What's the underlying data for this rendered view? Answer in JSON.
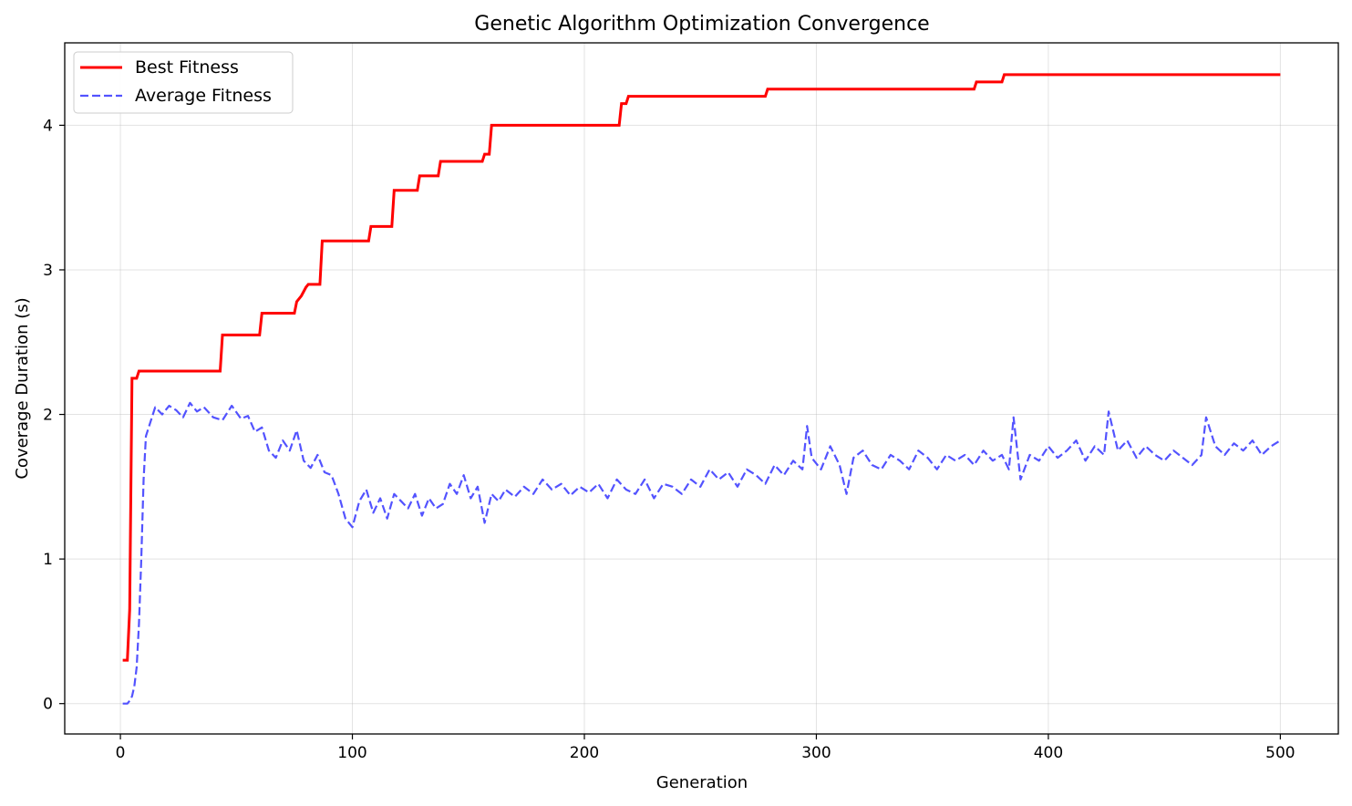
{
  "chart_data": {
    "type": "line",
    "title": "Genetic Algorithm Optimization Convergence",
    "xlabel": "Generation",
    "ylabel": "Coverage Duration (s)",
    "xlim": [
      -24,
      525
    ],
    "ylim": [
      -0.21,
      4.57
    ],
    "xticks": [
      0,
      100,
      200,
      300,
      400,
      500
    ],
    "yticks": [
      0,
      1,
      2,
      3,
      4
    ],
    "grid": true,
    "legend_position": "upper left",
    "series": [
      {
        "name": "Best Fitness",
        "style": "solid",
        "color": "#ff0000",
        "points": [
          [
            1,
            0.3
          ],
          [
            3,
            0.3
          ],
          [
            4,
            0.65
          ],
          [
            5,
            2.25
          ],
          [
            7,
            2.25
          ],
          [
            8,
            2.3
          ],
          [
            43,
            2.3
          ],
          [
            44,
            2.55
          ],
          [
            60,
            2.55
          ],
          [
            61,
            2.7
          ],
          [
            75,
            2.7
          ],
          [
            76,
            2.78
          ],
          [
            77,
            2.8
          ],
          [
            78,
            2.82
          ],
          [
            79,
            2.85
          ],
          [
            80,
            2.88
          ],
          [
            81,
            2.9
          ],
          [
            86,
            2.9
          ],
          [
            87,
            3.2
          ],
          [
            107,
            3.2
          ],
          [
            108,
            3.3
          ],
          [
            117,
            3.3
          ],
          [
            118,
            3.55
          ],
          [
            128,
            3.55
          ],
          [
            129,
            3.65
          ],
          [
            137,
            3.65
          ],
          [
            138,
            3.75
          ],
          [
            156,
            3.75
          ],
          [
            157,
            3.8
          ],
          [
            159,
            3.8
          ],
          [
            160,
            4.0
          ],
          [
            215,
            4.0
          ],
          [
            216,
            4.15
          ],
          [
            218,
            4.15
          ],
          [
            219,
            4.2
          ],
          [
            278,
            4.2
          ],
          [
            279,
            4.25
          ],
          [
            368,
            4.25
          ],
          [
            369,
            4.3
          ],
          [
            380,
            4.3
          ],
          [
            381,
            4.35
          ],
          [
            500,
            4.35
          ]
        ]
      },
      {
        "name": "Average Fitness",
        "style": "dashed",
        "color": "#4040ff",
        "points": [
          [
            1,
            0.0
          ],
          [
            3,
            0.0
          ],
          [
            4,
            0.02
          ],
          [
            5,
            0.05
          ],
          [
            6,
            0.12
          ],
          [
            7,
            0.25
          ],
          [
            8,
            0.55
          ],
          [
            9,
            1.0
          ],
          [
            10,
            1.55
          ],
          [
            11,
            1.85
          ],
          [
            13,
            1.95
          ],
          [
            15,
            2.05
          ],
          [
            18,
            2.0
          ],
          [
            21,
            2.06
          ],
          [
            24,
            2.03
          ],
          [
            27,
            1.98
          ],
          [
            30,
            2.08
          ],
          [
            33,
            2.02
          ],
          [
            36,
            2.05
          ],
          [
            40,
            1.98
          ],
          [
            44,
            1.96
          ],
          [
            48,
            2.06
          ],
          [
            52,
            1.97
          ],
          [
            55,
            1.99
          ],
          [
            58,
            1.88
          ],
          [
            61,
            1.91
          ],
          [
            64,
            1.75
          ],
          [
            67,
            1.7
          ],
          [
            70,
            1.82
          ],
          [
            73,
            1.75
          ],
          [
            76,
            1.89
          ],
          [
            79,
            1.68
          ],
          [
            82,
            1.63
          ],
          [
            85,
            1.72
          ],
          [
            88,
            1.6
          ],
          [
            91,
            1.58
          ],
          [
            94,
            1.45
          ],
          [
            97,
            1.28
          ],
          [
            100,
            1.22
          ],
          [
            103,
            1.4
          ],
          [
            106,
            1.48
          ],
          [
            109,
            1.32
          ],
          [
            112,
            1.42
          ],
          [
            115,
            1.28
          ],
          [
            118,
            1.45
          ],
          [
            121,
            1.4
          ],
          [
            124,
            1.35
          ],
          [
            127,
            1.45
          ],
          [
            130,
            1.3
          ],
          [
            133,
            1.42
          ],
          [
            136,
            1.35
          ],
          [
            139,
            1.38
          ],
          [
            142,
            1.52
          ],
          [
            145,
            1.45
          ],
          [
            148,
            1.58
          ],
          [
            151,
            1.42
          ],
          [
            154,
            1.5
          ],
          [
            157,
            1.25
          ],
          [
            160,
            1.45
          ],
          [
            163,
            1.4
          ],
          [
            166,
            1.48
          ],
          [
            170,
            1.43
          ],
          [
            174,
            1.5
          ],
          [
            178,
            1.45
          ],
          [
            182,
            1.55
          ],
          [
            186,
            1.48
          ],
          [
            190,
            1.52
          ],
          [
            194,
            1.44
          ],
          [
            198,
            1.5
          ],
          [
            202,
            1.46
          ],
          [
            206,
            1.52
          ],
          [
            210,
            1.42
          ],
          [
            214,
            1.55
          ],
          [
            218,
            1.48
          ],
          [
            222,
            1.45
          ],
          [
            226,
            1.55
          ],
          [
            230,
            1.42
          ],
          [
            234,
            1.52
          ],
          [
            238,
            1.5
          ],
          [
            242,
            1.45
          ],
          [
            246,
            1.55
          ],
          [
            250,
            1.5
          ],
          [
            254,
            1.62
          ],
          [
            258,
            1.55
          ],
          [
            262,
            1.6
          ],
          [
            266,
            1.5
          ],
          [
            270,
            1.62
          ],
          [
            274,
            1.58
          ],
          [
            278,
            1.52
          ],
          [
            282,
            1.65
          ],
          [
            286,
            1.58
          ],
          [
            290,
            1.68
          ],
          [
            294,
            1.62
          ],
          [
            296,
            1.92
          ],
          [
            298,
            1.7
          ],
          [
            302,
            1.62
          ],
          [
            306,
            1.78
          ],
          [
            310,
            1.65
          ],
          [
            313,
            1.45
          ],
          [
            316,
            1.7
          ],
          [
            320,
            1.75
          ],
          [
            324,
            1.65
          ],
          [
            328,
            1.62
          ],
          [
            332,
            1.72
          ],
          [
            336,
            1.68
          ],
          [
            340,
            1.62
          ],
          [
            344,
            1.75
          ],
          [
            348,
            1.7
          ],
          [
            352,
            1.62
          ],
          [
            356,
            1.72
          ],
          [
            360,
            1.68
          ],
          [
            364,
            1.72
          ],
          [
            368,
            1.65
          ],
          [
            372,
            1.75
          ],
          [
            376,
            1.68
          ],
          [
            380,
            1.72
          ],
          [
            383,
            1.62
          ],
          [
            385,
            1.98
          ],
          [
            388,
            1.55
          ],
          [
            392,
            1.72
          ],
          [
            396,
            1.68
          ],
          [
            400,
            1.78
          ],
          [
            404,
            1.7
          ],
          [
            408,
            1.75
          ],
          [
            412,
            1.82
          ],
          [
            416,
            1.68
          ],
          [
            420,
            1.78
          ],
          [
            424,
            1.72
          ],
          [
            426,
            2.02
          ],
          [
            430,
            1.75
          ],
          [
            434,
            1.82
          ],
          [
            438,
            1.7
          ],
          [
            442,
            1.78
          ],
          [
            446,
            1.72
          ],
          [
            450,
            1.68
          ],
          [
            454,
            1.75
          ],
          [
            458,
            1.7
          ],
          [
            462,
            1.65
          ],
          [
            466,
            1.72
          ],
          [
            468,
            1.98
          ],
          [
            472,
            1.78
          ],
          [
            476,
            1.72
          ],
          [
            480,
            1.8
          ],
          [
            484,
            1.75
          ],
          [
            488,
            1.82
          ],
          [
            492,
            1.72
          ],
          [
            496,
            1.78
          ],
          [
            500,
            1.82
          ]
        ]
      }
    ]
  }
}
